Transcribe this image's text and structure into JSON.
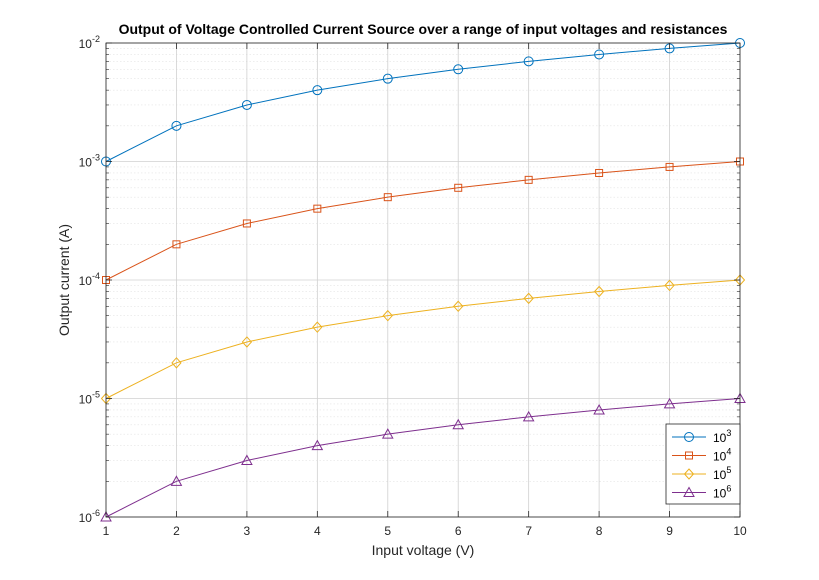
{
  "chart_data": {
    "type": "line",
    "title": "Output of Voltage Controlled Current Source over a range of input voltages and resistances",
    "xlabel": "Input voltage (V)",
    "ylabel": "Output current (A)",
    "x": [
      1,
      2,
      3,
      4,
      5,
      6,
      7,
      8,
      9,
      10
    ],
    "xlim": [
      1,
      10
    ],
    "ylim": [
      1e-06,
      0.01
    ],
    "yscale": "log",
    "grid": true,
    "minor_grid": true,
    "legend_position": "bottom-right",
    "x_ticks": [
      "1",
      "2",
      "3",
      "4",
      "5",
      "6",
      "7",
      "8",
      "9",
      "10"
    ],
    "y_ticks": [
      {
        "base": "10",
        "exp": "-6"
      },
      {
        "base": "10",
        "exp": "-5"
      },
      {
        "base": "10",
        "exp": "-4"
      },
      {
        "base": "10",
        "exp": "-3"
      },
      {
        "base": "10",
        "exp": "-2"
      }
    ],
    "series": [
      {
        "name_base": "10",
        "name_exp": "3",
        "marker": "circle",
        "color": "#0072BD",
        "values": [
          0.001,
          0.002,
          0.003,
          0.004,
          0.005,
          0.006,
          0.007,
          0.008,
          0.009,
          0.01
        ]
      },
      {
        "name_base": "10",
        "name_exp": "4",
        "marker": "square",
        "color": "#D95319",
        "values": [
          0.0001,
          0.0002,
          0.0003,
          0.0004,
          0.0005,
          0.0006,
          0.0007,
          0.0008,
          0.0009,
          0.001
        ]
      },
      {
        "name_base": "10",
        "name_exp": "5",
        "marker": "diamond",
        "color": "#EDB120",
        "values": [
          1e-05,
          2e-05,
          3e-05,
          4e-05,
          5e-05,
          6e-05,
          7e-05,
          8e-05,
          9e-05,
          0.0001
        ]
      },
      {
        "name_base": "10",
        "name_exp": "6",
        "marker": "triangle",
        "color": "#7E2F8E",
        "values": [
          1e-06,
          2e-06,
          3e-06,
          4e-06,
          5e-06,
          6e-06,
          7e-06,
          8e-06,
          9e-06,
          1e-05
        ]
      }
    ]
  }
}
